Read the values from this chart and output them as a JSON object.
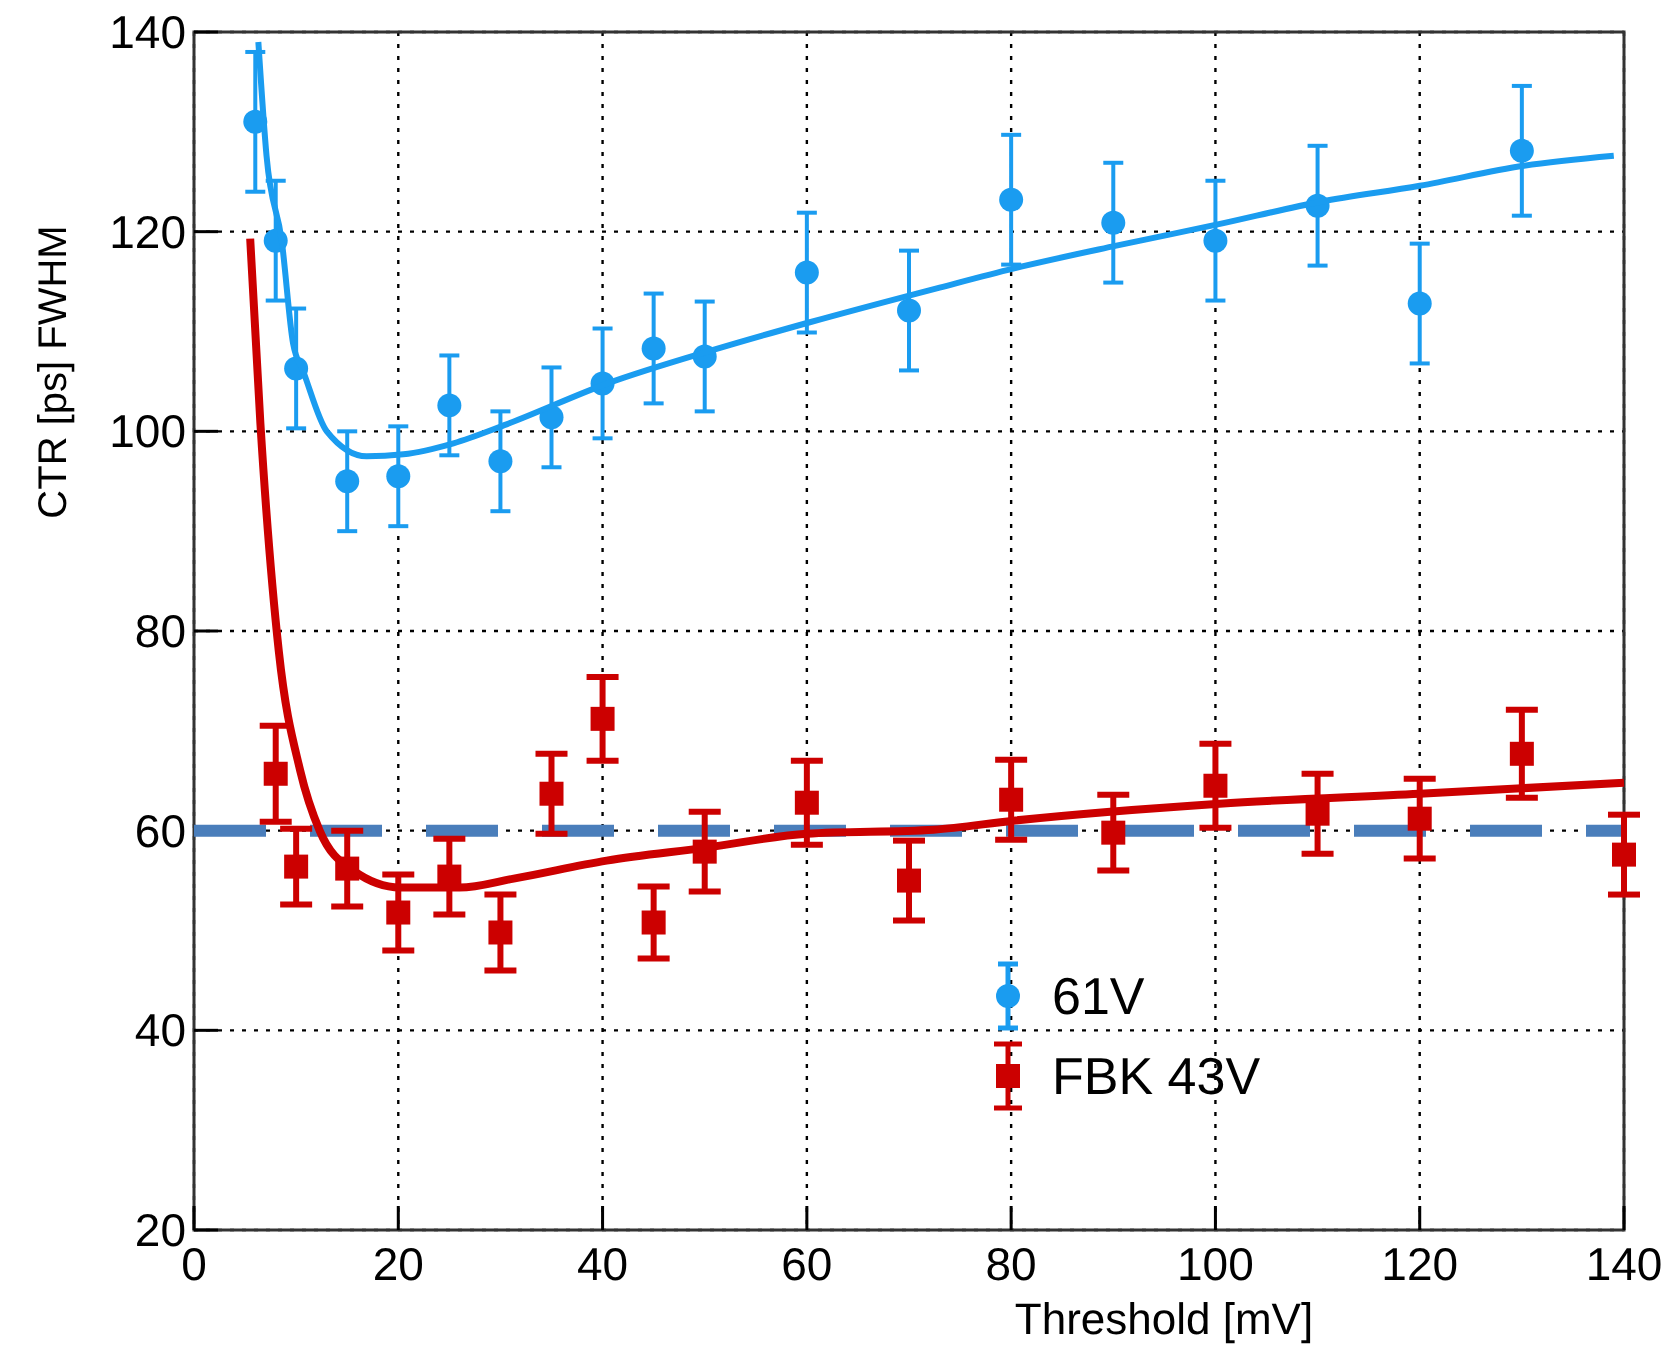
{
  "chart_data": {
    "type": "scatter",
    "xlabel": "Threshold [mV]",
    "ylabel": "CTR [ps]  FWHM",
    "xlim": [
      0,
      140
    ],
    "xticks": [
      0,
      20,
      40,
      60,
      80,
      100,
      120,
      140
    ],
    "ylim": [
      20,
      140
    ],
    "yticks": [
      20,
      40,
      60,
      80,
      100,
      120,
      140
    ],
    "grid": true,
    "legend": "bottom right",
    "series": [
      {
        "name": "61V",
        "marker": "circle",
        "color": "#1a9cf0",
        "x": [
          6,
          8,
          10,
          15,
          20,
          25,
          30,
          35,
          40,
          45,
          50,
          60,
          70,
          80,
          90,
          100,
          110,
          120,
          130
        ],
        "values": [
          131.0,
          119.1,
          106.3,
          95.0,
          95.5,
          102.6,
          97.0,
          101.4,
          104.8,
          108.3,
          107.5,
          115.9,
          112.1,
          123.2,
          120.9,
          119.1,
          122.6,
          112.8,
          128.1
        ],
        "errors": [
          7,
          6,
          6,
          5,
          5,
          5,
          5,
          5,
          5.5,
          5.5,
          5.5,
          6,
          6,
          6.5,
          6,
          6,
          6,
          6,
          6.5
        ]
      },
      {
        "name": "FBK 43V",
        "marker": "square",
        "color": "#cc0000",
        "x": [
          8,
          10,
          15,
          20,
          25,
          30,
          35,
          40,
          45,
          50,
          60,
          70,
          80,
          90,
          100,
          110,
          120,
          130,
          140
        ],
        "values": [
          65.7,
          56.4,
          56.2,
          51.8,
          55.4,
          49.8,
          63.7,
          71.2,
          50.8,
          57.9,
          62.8,
          55.0,
          63.1,
          59.8,
          64.5,
          61.7,
          61.2,
          67.7,
          57.6
        ],
        "errors": [
          4.8,
          3.8,
          3.8,
          3.8,
          3.8,
          3.8,
          4,
          4.2,
          3.6,
          4,
          4.2,
          4,
          4,
          3.8,
          4.2,
          4,
          4,
          4.4,
          4
        ]
      },
      {
        "type": "line",
        "marker": "none",
        "color": "#1a9cf0",
        "x": [
          6.3,
          7.1,
          8.6,
          9.7,
          10.7,
          13,
          16.9,
          20.5,
          25.4,
          30.6,
          40.5,
          51,
          60.2,
          73,
          80.2,
          90.3,
          100.1,
          110.3,
          120,
          130.2,
          139
        ],
        "values": [
          139,
          127.6,
          119,
          108.8,
          106,
          100,
          97.5,
          97.7,
          98.8,
          100.7,
          104.8,
          108.2,
          110.9,
          114.4,
          116.3,
          118.6,
          120.7,
          123,
          124.6,
          126.6,
          127.6
        ]
      },
      {
        "type": "line",
        "marker": "none",
        "color": "#cc0000",
        "x": [
          5.5,
          6.5,
          8.3,
          10.4,
          12.3,
          15.6,
          20.2,
          26,
          31.3,
          40.4,
          50.2,
          60,
          72.4,
          80.2,
          100.4,
          120,
          140
        ],
        "values": [
          119.3,
          100.8,
          78,
          66,
          60,
          56,
          54.3,
          54.3,
          55.2,
          57,
          58.3,
          59.7,
          60.1,
          61,
          62.7,
          63.7,
          64.8
        ]
      }
    ],
    "ref_lines": [
      {
        "axis": "y",
        "value": 60,
        "color": "#4a7ebb",
        "line_style": "dashed"
      }
    ]
  }
}
